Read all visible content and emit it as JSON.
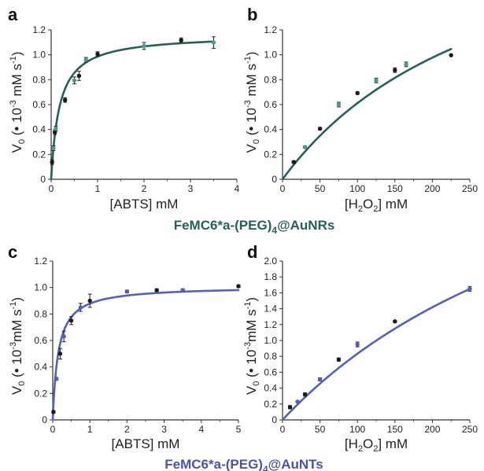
{
  "figure": {
    "caption_top": {
      "main": "FeMC6*a-(PEG)",
      "sub": "4",
      "tail": "@AuNRs",
      "color": "#27605a"
    },
    "caption_bottom": {
      "main": "FeMC6*a-(PEG)",
      "sub": "4",
      "tail": "@AuNTs",
      "color": "#4a55a8"
    }
  },
  "chart_data": [
    {
      "panel": "a",
      "type": "scatter",
      "xlabel": "[ABTS] mM",
      "ylabel": {
        "pre": "V",
        "sub": "0",
        "mid": " (• 10",
        "sup1": "-3",
        "mid2": " mM s",
        "sup2": "-1",
        "end": ")"
      },
      "xlim": [
        0,
        4
      ],
      "xticks": [
        "0",
        "1",
        "2",
        "3",
        "4"
      ],
      "ylim": [
        0,
        1.3
      ],
      "yticks": [
        "0",
        "0.2",
        "0.4",
        "0.6",
        "0.8",
        "1.0",
        "1.2"
      ],
      "grid": false,
      "marker_colors": [
        "#1a1a1a",
        "#4a9a8c"
      ],
      "fit_color": "#27605a",
      "fit": {
        "model": "michaelis-menten",
        "vmax": 1.26,
        "km": 0.18
      },
      "points": [
        {
          "x": 0.02,
          "y": 0.15,
          "err": 0.02
        },
        {
          "x": 0.05,
          "y": 0.27,
          "err": 0.02
        },
        {
          "x": 0.08,
          "y": 0.41,
          "err": 0.02
        },
        {
          "x": 0.1,
          "y": 0.44,
          "err": 0.02
        },
        {
          "x": 0.3,
          "y": 0.69,
          "err": 0.02
        },
        {
          "x": 0.5,
          "y": 0.86,
          "err": 0.03
        },
        {
          "x": 0.6,
          "y": 0.9,
          "err": 0.04
        },
        {
          "x": 0.75,
          "y": 1.04,
          "err": 0.02
        },
        {
          "x": 1.0,
          "y": 1.09,
          "err": 0.02
        },
        {
          "x": 2.0,
          "y": 1.16,
          "err": 0.03
        },
        {
          "x": 2.8,
          "y": 1.21,
          "err": 0.02
        },
        {
          "x": 3.5,
          "y": 1.19,
          "err": 0.05
        }
      ]
    },
    {
      "panel": "b",
      "type": "scatter",
      "xlabel": {
        "pre": "[H",
        "sub": "2",
        "mid": "O",
        "sub2": "2",
        "end": "] mM"
      },
      "ylabel": {
        "pre": "V",
        "sub": "0",
        "mid": " (• 10",
        "sup1": "-3",
        "mid2": " mM s",
        "sup2": "-1",
        "end": ")"
      },
      "xlim": [
        0,
        250
      ],
      "xticks": [
        "0",
        "50",
        "100",
        "150",
        "200",
        "250"
      ],
      "ylim": [
        0,
        1.3
      ],
      "yticks": [
        "0",
        "0.2",
        "0.4",
        "0.6",
        "0.8",
        "1.0",
        "1.2"
      ],
      "grid": false,
      "marker_colors": [
        "#1a1a1a",
        "#4a9a8c"
      ],
      "fit_color": "#27605a",
      "fit": {
        "model": "michaelis-menten",
        "vmax": 2.63,
        "km": 297,
        "xmax": 225
      },
      "points": [
        {
          "x": 15,
          "y": 0.15,
          "err": 0.01
        },
        {
          "x": 30,
          "y": 0.28,
          "err": 0.01
        },
        {
          "x": 50,
          "y": 0.44,
          "err": 0.01
        },
        {
          "x": 75,
          "y": 0.65,
          "err": 0.02
        },
        {
          "x": 100,
          "y": 0.75,
          "err": 0.01
        },
        {
          "x": 125,
          "y": 0.86,
          "err": 0.02
        },
        {
          "x": 150,
          "y": 0.95,
          "err": 0.02
        },
        {
          "x": 165,
          "y": 1.0,
          "err": 0.02
        },
        {
          "x": 225,
          "y": 1.08,
          "err": 0.0
        }
      ]
    },
    {
      "panel": "c",
      "type": "scatter",
      "xlabel": "[ABTS] mM",
      "ylabel": {
        "pre": "V",
        "sub": "0",
        "mid": " (• 10",
        "sup1": "-3",
        "mid2": "mM s",
        "sup2": "-1",
        "end": ")"
      },
      "xlim": [
        0,
        5
      ],
      "xticks": [
        "0",
        "1",
        "2",
        "3",
        "4",
        "5"
      ],
      "ylim": [
        0,
        1.2
      ],
      "yticks": [
        "0",
        "0.2",
        "0.4",
        "0.6",
        "0.8",
        "1.0",
        "1.2"
      ],
      "grid": false,
      "marker_colors": [
        "#1a1a1a",
        "#5560b8"
      ],
      "fit_color": "#5560b8",
      "fit": {
        "model": "michaelis-menten",
        "vmax": 1.01,
        "km": 0.15
      },
      "points": [
        {
          "x": 0.02,
          "y": 0.06,
          "err": 0.01
        },
        {
          "x": 0.1,
          "y": 0.31,
          "err": 0.01
        },
        {
          "x": 0.2,
          "y": 0.5,
          "err": 0.04
        },
        {
          "x": 0.3,
          "y": 0.63,
          "err": 0.04
        },
        {
          "x": 0.5,
          "y": 0.75,
          "err": 0.03
        },
        {
          "x": 0.75,
          "y": 0.85,
          "err": 0.03
        },
        {
          "x": 1.0,
          "y": 0.9,
          "err": 0.05
        },
        {
          "x": 2.0,
          "y": 0.97,
          "err": 0.01
        },
        {
          "x": 2.8,
          "y": 0.98,
          "err": 0.01
        },
        {
          "x": 3.5,
          "y": 0.98,
          "err": 0.01
        },
        {
          "x": 5.0,
          "y": 1.01,
          "err": 0.01
        }
      ]
    },
    {
      "panel": "d",
      "type": "scatter",
      "xlabel": {
        "pre": "[H",
        "sub": "2",
        "mid": "O",
        "sub2": "2",
        "end": "] mM"
      },
      "ylabel": {
        "pre": "V",
        "sub": "0",
        "mid": " (• 10",
        "sup1": "-3",
        "mid2": "mM s",
        "sup2": "-1",
        "end": ")"
      },
      "xlim": [
        0,
        250
      ],
      "xticks": [
        "0",
        "50",
        "100",
        "150",
        "200",
        "250"
      ],
      "ylim": [
        0,
        2.0
      ],
      "yticks": [
        "0",
        "0.2",
        "0.4",
        "0.6",
        "0.8",
        "1.0",
        "1.2",
        "1.4",
        "1.6",
        "1.8",
        "2.0"
      ],
      "grid": false,
      "marker_colors": [
        "#1a1a1a",
        "#5560b8"
      ],
      "fit_color": "#5560b8",
      "fit": {
        "model": "michaelis-menten",
        "vmax": 4.75,
        "km": 470
      },
      "points": [
        {
          "x": 10,
          "y": 0.16,
          "err": 0.02
        },
        {
          "x": 20,
          "y": 0.23,
          "err": 0.01
        },
        {
          "x": 30,
          "y": 0.32,
          "err": 0.02
        },
        {
          "x": 50,
          "y": 0.51,
          "err": 0.02
        },
        {
          "x": 75,
          "y": 0.76,
          "err": 0.02
        },
        {
          "x": 100,
          "y": 0.95,
          "err": 0.03
        },
        {
          "x": 150,
          "y": 1.24,
          "err": 0.01
        },
        {
          "x": 250,
          "y": 1.65,
          "err": 0.03
        }
      ]
    }
  ]
}
